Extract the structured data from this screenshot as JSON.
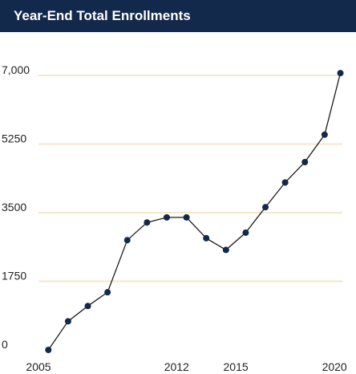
{
  "chart_data": {
    "type": "line",
    "title": "Year-End Total Enrollments",
    "xlabel": "",
    "ylabel": "",
    "x": [
      2005.5,
      2006.5,
      2007.5,
      2008.5,
      2009.5,
      2010.5,
      2011.5,
      2012.5,
      2013.5,
      2014.5,
      2015.5,
      2016.5,
      2017.5,
      2018.5,
      2019.5,
      2020.3
    ],
    "values": [
      0,
      730,
      1120,
      1470,
      2800,
      3250,
      3380,
      3380,
      2850,
      2550,
      2990,
      3640,
      4270,
      4790,
      5490,
      7060
    ],
    "xlim": [
      2005,
      2020.4
    ],
    "ylim": [
      0,
      7000
    ],
    "x_ticks": [
      {
        "value": 2005,
        "label": "2005"
      },
      {
        "value": 2012,
        "label": "2012"
      },
      {
        "value": 2015,
        "label": "2015"
      },
      {
        "value": 2020,
        "label": "2020"
      }
    ],
    "y_ticks": [
      {
        "value": 0,
        "label": "0"
      },
      {
        "value": 1750,
        "label": "1750"
      },
      {
        "value": 3500,
        "label": "3500"
      },
      {
        "value": 5250,
        "label": "5250"
      },
      {
        "value": 7000,
        "label": "7,000"
      }
    ],
    "grid": true,
    "colors": {
      "title_background": "#13294b",
      "title_text": "#ffffff",
      "line": "#1c1c1c",
      "marker": "#13294b",
      "gridline": "#f6e7cb"
    }
  }
}
